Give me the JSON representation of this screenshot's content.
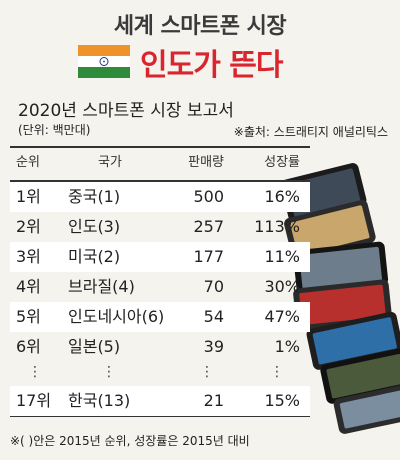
{
  "header": {
    "title": "세계 스마트폰 시장",
    "headline": "인도가 뜬다",
    "flag_colors": [
      "#f0922a",
      "#ffffff",
      "#2e8b3a"
    ]
  },
  "report": {
    "subtitle": "2020년 스마트폰 시장 보고서",
    "unit": "(단위: 백만대)",
    "source": "※출처: 스트래티지 애널리틱스"
  },
  "chart_data": {
    "type": "table",
    "columns": [
      "순위",
      "국가",
      "판매량",
      "성장률"
    ],
    "rows": [
      {
        "rank": "1위",
        "country": "중국(1)",
        "sales": 500,
        "growth": "16%"
      },
      {
        "rank": "2위",
        "country": "인도(3)",
        "sales": 257,
        "growth": "113%"
      },
      {
        "rank": "3위",
        "country": "미국(2)",
        "sales": 177,
        "growth": "11%"
      },
      {
        "rank": "4위",
        "country": "브라질(4)",
        "sales": 70,
        "growth": "30%"
      },
      {
        "rank": "5위",
        "country": "인도네시아(6)",
        "sales": 54,
        "growth": "47%"
      },
      {
        "rank": "6위",
        "country": "일본(5)",
        "sales": 39,
        "growth": "1%"
      },
      {
        "rank": "17위",
        "country": "한국(13)",
        "sales": 21,
        "growth": "15%"
      }
    ],
    "ellipsis": "⋮"
  },
  "footnote": "※( )안은 2015년 순위, 성장률은 2015년 대비"
}
